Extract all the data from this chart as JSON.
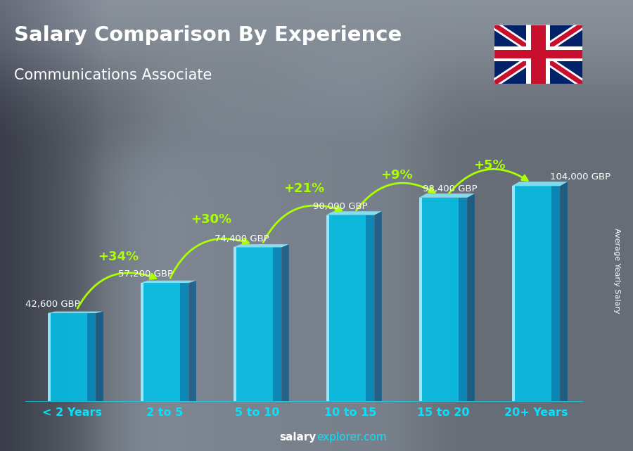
{
  "title_line1": "Salary Comparison By Experience",
  "title_line2": "Communications Associate",
  "categories": [
    "< 2 Years",
    "2 to 5",
    "5 to 10",
    "10 to 15",
    "15 to 20",
    "20+ Years"
  ],
  "values": [
    42600,
    57200,
    74400,
    90000,
    98400,
    104000
  ],
  "labels": [
    "42,600 GBP",
    "57,200 GBP",
    "74,400 GBP",
    "90,000 GBP",
    "98,400 GBP",
    "104,000 GBP"
  ],
  "pct_changes": [
    "+34%",
    "+30%",
    "+21%",
    "+9%",
    "+5%"
  ],
  "bar_color_main": "#00c8f0",
  "bar_color_light": "#55ddff",
  "bar_color_dark": "#0099cc",
  "bar_color_top": "#88eeff",
  "text_color_white": "#ffffff",
  "text_color_cyan": "#00e5ff",
  "text_color_green": "#aaff00",
  "ylabel": "Average Yearly Salary",
  "footer_salary": "salary",
  "footer_explorer": "explorer",
  "footer_domain": ".com",
  "ylim_max": 135000,
  "bg_people_color": "#6a7a8a",
  "flag_blue": "#012169",
  "flag_red": "#C8102E"
}
